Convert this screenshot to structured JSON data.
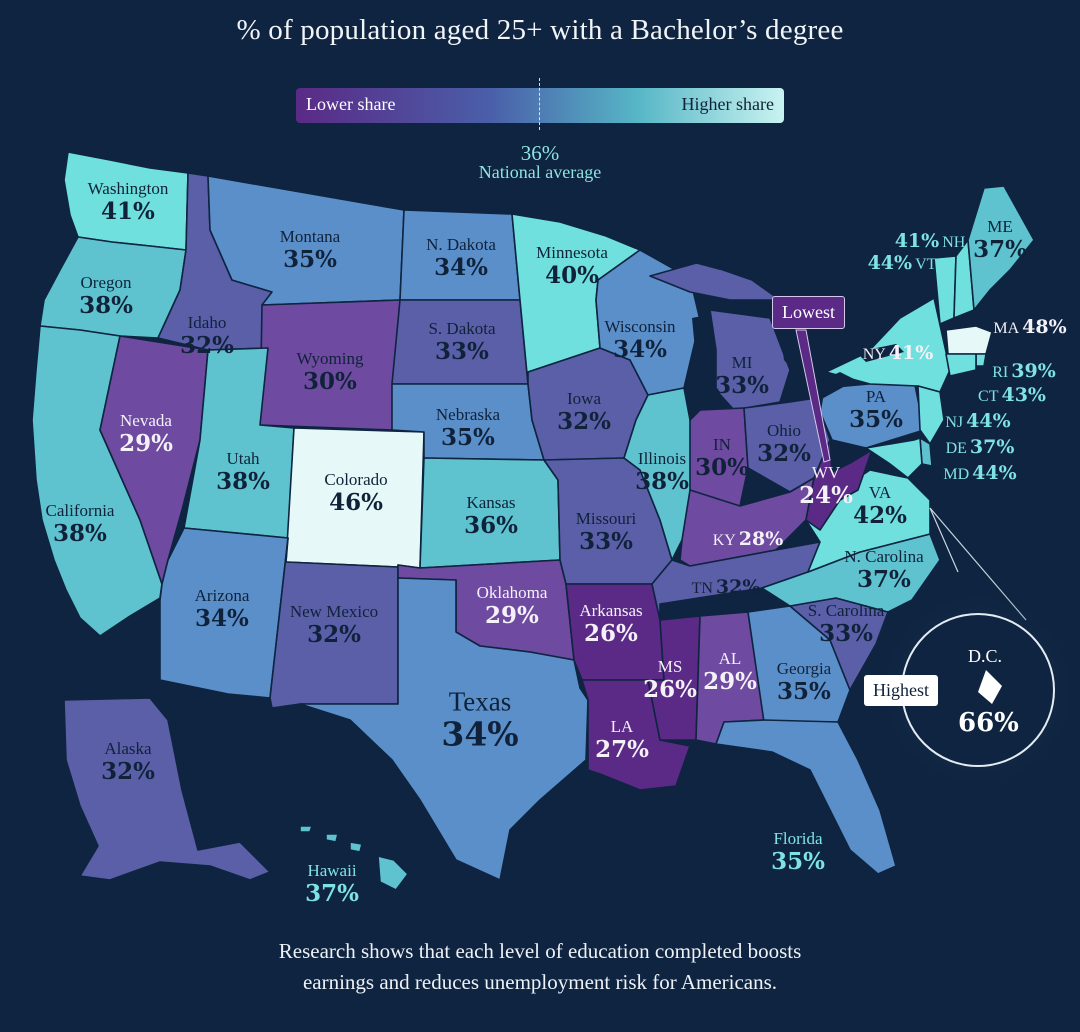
{
  "title": "% of population aged 25+ with a Bachelor’s degree",
  "legend": {
    "low_label": "Lower share",
    "high_label": "Higher share",
    "national_value": "36%",
    "national_label": "National average"
  },
  "colors": {
    "background": "#0e2440",
    "lowest": "#5a2a86",
    "low": "#6e4aa0",
    "mid_low": "#5a5fa8",
    "mid": "#5b8fca",
    "mid_high": "#5ec3cf",
    "high": "#6fe0dd",
    "highest": "#e6f8f7"
  },
  "states": {
    "WA": {
      "name": "Washington",
      "value": "41%"
    },
    "OR": {
      "name": "Oregon",
      "value": "38%"
    },
    "CA": {
      "name": "California",
      "value": "38%"
    },
    "NV": {
      "name": "Nevada",
      "value": "29%"
    },
    "ID": {
      "name": "Idaho",
      "value": "32%"
    },
    "MT": {
      "name": "Montana",
      "value": "35%"
    },
    "WY": {
      "name": "Wyoming",
      "value": "30%"
    },
    "UT": {
      "name": "Utah",
      "value": "38%"
    },
    "CO": {
      "name": "Colorado",
      "value": "46%"
    },
    "AZ": {
      "name": "Arizona",
      "value": "34%"
    },
    "NM": {
      "name": "New Mexico",
      "value": "32%"
    },
    "ND": {
      "name": "N. Dakota",
      "value": "34%"
    },
    "SD": {
      "name": "S. Dakota",
      "value": "33%"
    },
    "NE": {
      "name": "Nebraska",
      "value": "35%"
    },
    "KS": {
      "name": "Kansas",
      "value": "36%"
    },
    "OK": {
      "name": "Oklahoma",
      "value": "29%"
    },
    "TX": {
      "name": "Texas",
      "value": "34%"
    },
    "MN": {
      "name": "Minnesota",
      "value": "40%"
    },
    "IA": {
      "name": "Iowa",
      "value": "32%"
    },
    "MO": {
      "name": "Missouri",
      "value": "33%"
    },
    "AR": {
      "name": "Arkansas",
      "value": "26%"
    },
    "LA": {
      "name": "LA",
      "value": "27%"
    },
    "WI": {
      "name": "Wisconsin",
      "value": "34%"
    },
    "IL": {
      "name": "Illinois",
      "value": "38%"
    },
    "MI": {
      "name": "MI",
      "value": "33%"
    },
    "IN": {
      "name": "IN",
      "value": "30%"
    },
    "OH": {
      "name": "Ohio",
      "value": "32%"
    },
    "KY": {
      "name": "KY",
      "value": "28%"
    },
    "TN": {
      "name": "TN",
      "value": "32%"
    },
    "MS": {
      "name": "MS",
      "value": "26%"
    },
    "AL": {
      "name": "AL",
      "value": "29%"
    },
    "GA": {
      "name": "Georgia",
      "value": "35%"
    },
    "FL": {
      "name": "Florida",
      "value": "35%"
    },
    "SC": {
      "name": "S. Carolina",
      "value": "33%"
    },
    "NC": {
      "name": "N. Carolina",
      "value": "37%"
    },
    "VA": {
      "name": "VA",
      "value": "42%"
    },
    "WV": {
      "name": "WV",
      "value": "24%"
    },
    "PA": {
      "name": "PA",
      "value": "35%"
    },
    "NY": {
      "name": "NY",
      "value": "41%"
    },
    "ME": {
      "name": "ME",
      "value": "37%"
    },
    "NH": {
      "name": "NH",
      "value": "41%"
    },
    "VT": {
      "name": "VT",
      "value": "44%"
    },
    "MA": {
      "name": "MA",
      "value": "48%"
    },
    "RI": {
      "name": "RI",
      "value": "39%"
    },
    "CT": {
      "name": "CT",
      "value": "43%"
    },
    "NJ": {
      "name": "NJ",
      "value": "44%"
    },
    "DE": {
      "name": "DE",
      "value": "37%"
    },
    "MD": {
      "name": "MD",
      "value": "44%"
    },
    "AK": {
      "name": "Alaska",
      "value": "32%"
    },
    "HI": {
      "name": "Hawaii",
      "value": "37%"
    }
  },
  "callouts": {
    "lowest": "Lowest",
    "highest": "Highest",
    "dc_name": "D.C.",
    "dc_value": "66%"
  },
  "footer": {
    "line1": "Research shows that each level of education completed boosts",
    "line2": "earnings and reduces unemployment risk for Americans."
  }
}
